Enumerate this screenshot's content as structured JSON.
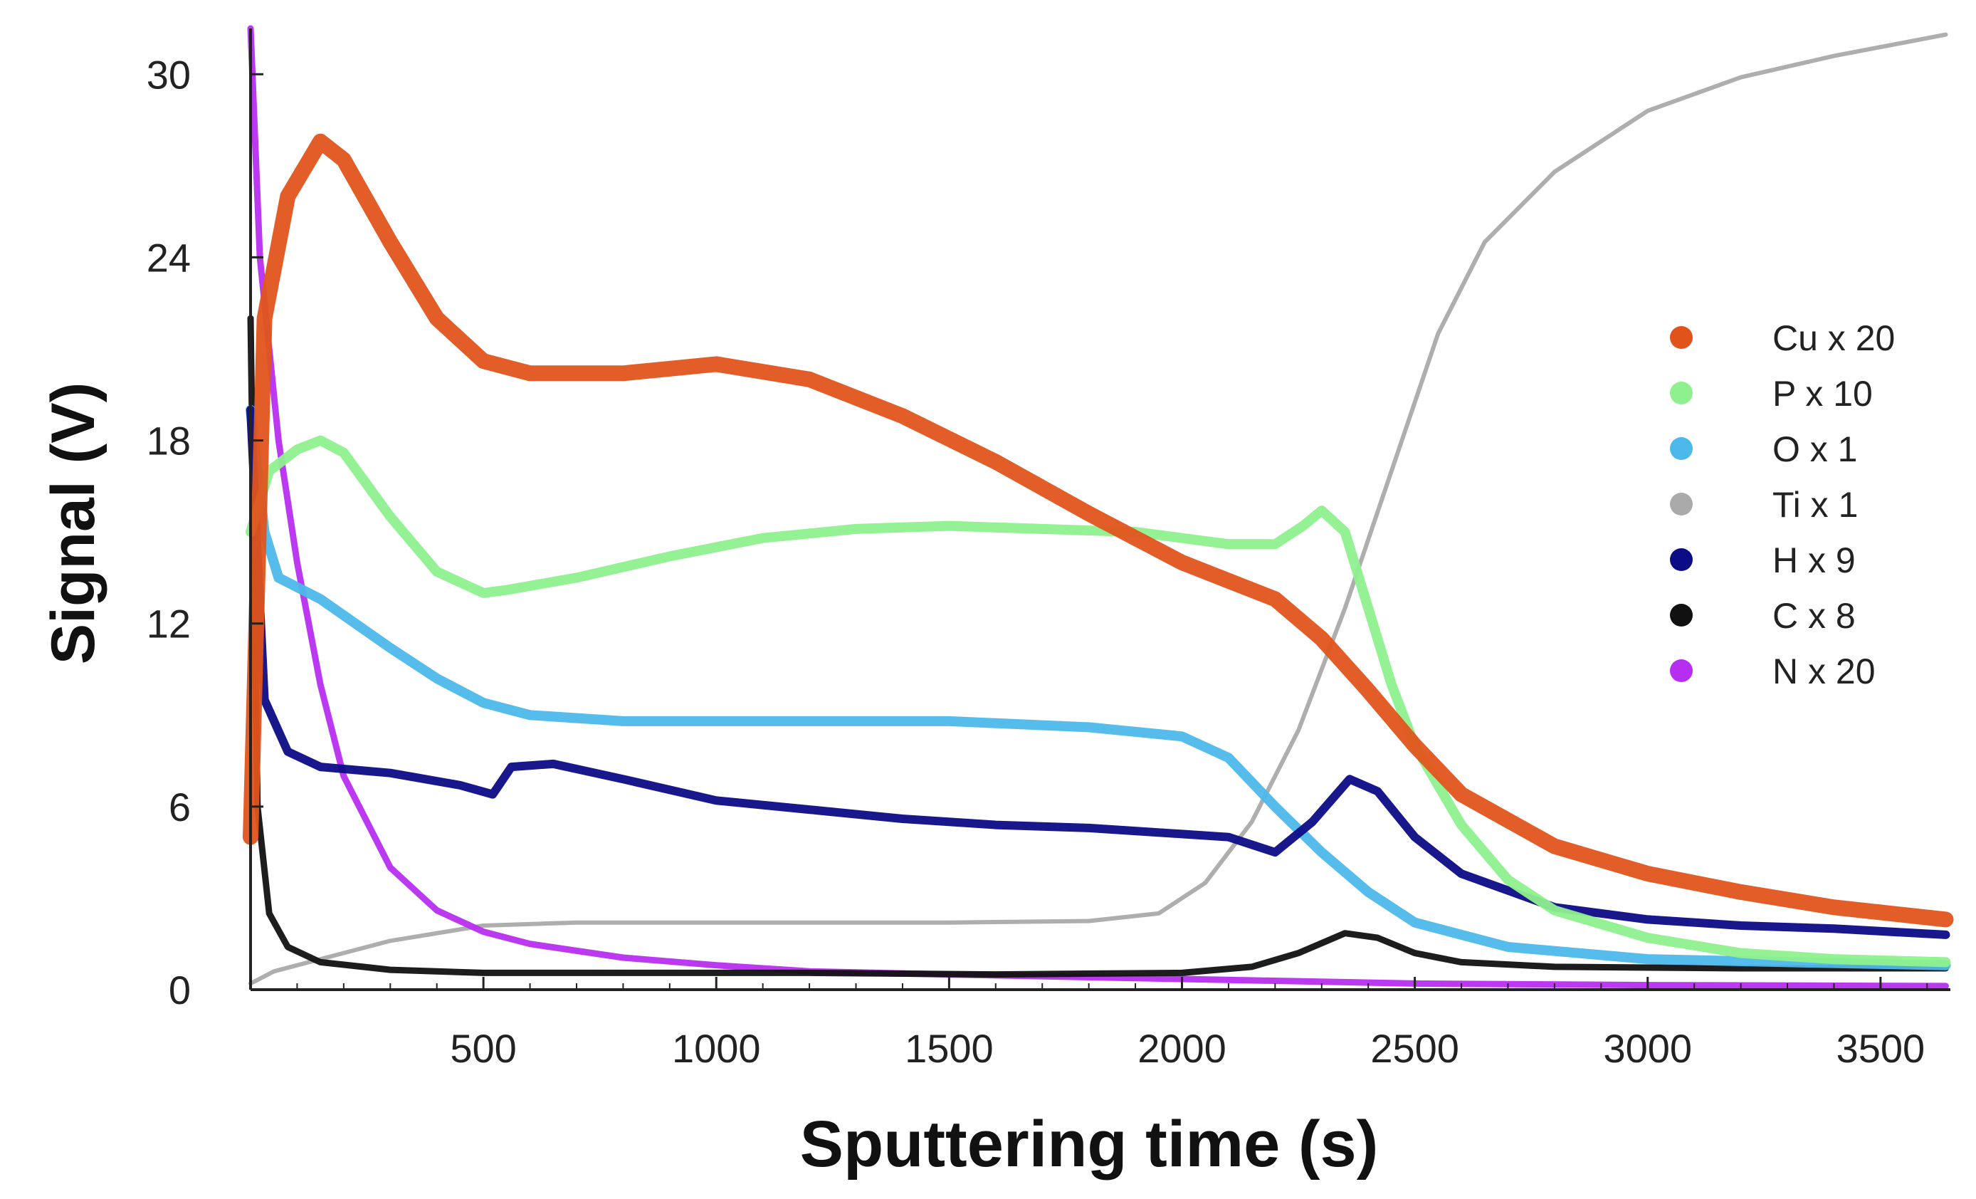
{
  "chart_data": {
    "type": "line",
    "title": "",
    "xlabel": "Sputtering time (s)",
    "ylabel": "Signal (V)",
    "xlim": [
      0,
      3650
    ],
    "ylim": [
      0,
      31.5
    ],
    "xticks": [
      500,
      1000,
      1500,
      2000,
      2500,
      3000,
      3500
    ],
    "yticks": [
      0,
      6,
      12,
      18,
      24,
      30
    ],
    "grid": false,
    "legend_position": "right",
    "series": [
      {
        "name": "Cu  x 20",
        "color": "#e0541c",
        "width": 22,
        "points": [
          [
            0,
            5
          ],
          [
            30,
            22
          ],
          [
            80,
            26
          ],
          [
            150,
            27.8
          ],
          [
            200,
            27.2
          ],
          [
            300,
            24.5
          ],
          [
            400,
            22
          ],
          [
            500,
            20.6
          ],
          [
            600,
            20.2
          ],
          [
            800,
            20.2
          ],
          [
            1000,
            20.5
          ],
          [
            1200,
            20
          ],
          [
            1400,
            18.8
          ],
          [
            1600,
            17.3
          ],
          [
            1800,
            15.6
          ],
          [
            2000,
            14
          ],
          [
            2100,
            13.4
          ],
          [
            2200,
            12.8
          ],
          [
            2300,
            11.5
          ],
          [
            2400,
            9.8
          ],
          [
            2500,
            8
          ],
          [
            2600,
            6.4
          ],
          [
            2800,
            4.7
          ],
          [
            3000,
            3.8
          ],
          [
            3200,
            3.2
          ],
          [
            3400,
            2.7
          ],
          [
            3640,
            2.3
          ]
        ]
      },
      {
        "name": "P  x 10",
        "color": "#8ef08e",
        "width": 14,
        "points": [
          [
            0,
            15
          ],
          [
            40,
            17
          ],
          [
            100,
            17.7
          ],
          [
            150,
            18
          ],
          [
            200,
            17.6
          ],
          [
            300,
            15.5
          ],
          [
            400,
            13.7
          ],
          [
            500,
            13
          ],
          [
            550,
            13.1
          ],
          [
            700,
            13.5
          ],
          [
            900,
            14.2
          ],
          [
            1100,
            14.8
          ],
          [
            1300,
            15.1
          ],
          [
            1500,
            15.2
          ],
          [
            1700,
            15.1
          ],
          [
            1900,
            15
          ],
          [
            2100,
            14.6
          ],
          [
            2200,
            14.6
          ],
          [
            2260,
            15.2
          ],
          [
            2300,
            15.7
          ],
          [
            2350,
            15
          ],
          [
            2400,
            12.5
          ],
          [
            2450,
            10
          ],
          [
            2500,
            8
          ],
          [
            2600,
            5.4
          ],
          [
            2700,
            3.6
          ],
          [
            2800,
            2.6
          ],
          [
            3000,
            1.7
          ],
          [
            3200,
            1.2
          ],
          [
            3400,
            1
          ],
          [
            3640,
            0.9
          ]
        ]
      },
      {
        "name": "O  x 1",
        "color": "#4db8ea",
        "width": 14,
        "points": [
          [
            0,
            19
          ],
          [
            30,
            15
          ],
          [
            60,
            13.5
          ],
          [
            150,
            12.8
          ],
          [
            300,
            11.2
          ],
          [
            400,
            10.2
          ],
          [
            500,
            9.4
          ],
          [
            600,
            9
          ],
          [
            800,
            8.8
          ],
          [
            1000,
            8.8
          ],
          [
            1200,
            8.8
          ],
          [
            1500,
            8.8
          ],
          [
            1800,
            8.6
          ],
          [
            2000,
            8.3
          ],
          [
            2100,
            7.6
          ],
          [
            2200,
            6
          ],
          [
            2300,
            4.5
          ],
          [
            2400,
            3.2
          ],
          [
            2500,
            2.2
          ],
          [
            2700,
            1.4
          ],
          [
            3000,
            1
          ],
          [
            3300,
            0.9
          ],
          [
            3640,
            0.8
          ]
        ]
      },
      {
        "name": "Ti  x 1",
        "color": "#aaaaaa",
        "width": 6,
        "points": [
          [
            0,
            0.2
          ],
          [
            50,
            0.6
          ],
          [
            150,
            1
          ],
          [
            300,
            1.6
          ],
          [
            500,
            2.1
          ],
          [
            700,
            2.2
          ],
          [
            1000,
            2.2
          ],
          [
            1500,
            2.2
          ],
          [
            1800,
            2.25
          ],
          [
            1950,
            2.5
          ],
          [
            2050,
            3.5
          ],
          [
            2150,
            5.5
          ],
          [
            2250,
            8.5
          ],
          [
            2350,
            12.5
          ],
          [
            2450,
            17
          ],
          [
            2550,
            21.5
          ],
          [
            2650,
            24.5
          ],
          [
            2800,
            26.8
          ],
          [
            3000,
            28.8
          ],
          [
            3200,
            29.9
          ],
          [
            3400,
            30.6
          ],
          [
            3640,
            31.3
          ]
        ]
      },
      {
        "name": "H  x 9",
        "color": "#0c0c86",
        "width": 12,
        "points": [
          [
            0,
            19
          ],
          [
            30,
            9.5
          ],
          [
            80,
            7.8
          ],
          [
            150,
            7.3
          ],
          [
            300,
            7.1
          ],
          [
            450,
            6.7
          ],
          [
            520,
            6.4
          ],
          [
            560,
            7.3
          ],
          [
            650,
            7.4
          ],
          [
            800,
            6.9
          ],
          [
            1000,
            6.2
          ],
          [
            1200,
            5.9
          ],
          [
            1400,
            5.6
          ],
          [
            1600,
            5.4
          ],
          [
            1800,
            5.3
          ],
          [
            2000,
            5.1
          ],
          [
            2100,
            5
          ],
          [
            2200,
            4.5
          ],
          [
            2280,
            5.5
          ],
          [
            2360,
            6.9
          ],
          [
            2420,
            6.5
          ],
          [
            2500,
            5
          ],
          [
            2600,
            3.8
          ],
          [
            2800,
            2.7
          ],
          [
            3000,
            2.3
          ],
          [
            3200,
            2.1
          ],
          [
            3400,
            2
          ],
          [
            3640,
            1.8
          ]
        ]
      },
      {
        "name": "C  x 8",
        "color": "#111111",
        "width": 9,
        "points": [
          [
            0,
            22
          ],
          [
            15,
            6
          ],
          [
            40,
            2.5
          ],
          [
            80,
            1.4
          ],
          [
            150,
            0.9
          ],
          [
            300,
            0.65
          ],
          [
            500,
            0.55
          ],
          [
            800,
            0.55
          ],
          [
            1200,
            0.55
          ],
          [
            1600,
            0.5
          ],
          [
            2000,
            0.55
          ],
          [
            2150,
            0.75
          ],
          [
            2250,
            1.2
          ],
          [
            2350,
            1.85
          ],
          [
            2420,
            1.7
          ],
          [
            2500,
            1.2
          ],
          [
            2600,
            0.9
          ],
          [
            2800,
            0.75
          ],
          [
            3200,
            0.7
          ],
          [
            3640,
            0.7
          ]
        ]
      },
      {
        "name": "N  x 20",
        "color": "#b62ef0",
        "width": 9,
        "points": [
          [
            0,
            31.5
          ],
          [
            20,
            24
          ],
          [
            60,
            18
          ],
          [
            100,
            14
          ],
          [
            150,
            10
          ],
          [
            200,
            7
          ],
          [
            300,
            4
          ],
          [
            400,
            2.6
          ],
          [
            500,
            1.9
          ],
          [
            600,
            1.5
          ],
          [
            800,
            1.05
          ],
          [
            1000,
            0.8
          ],
          [
            1200,
            0.6
          ],
          [
            1500,
            0.5
          ],
          [
            2000,
            0.35
          ],
          [
            2500,
            0.2
          ],
          [
            3000,
            0.15
          ],
          [
            3640,
            0.12
          ]
        ]
      }
    ]
  }
}
